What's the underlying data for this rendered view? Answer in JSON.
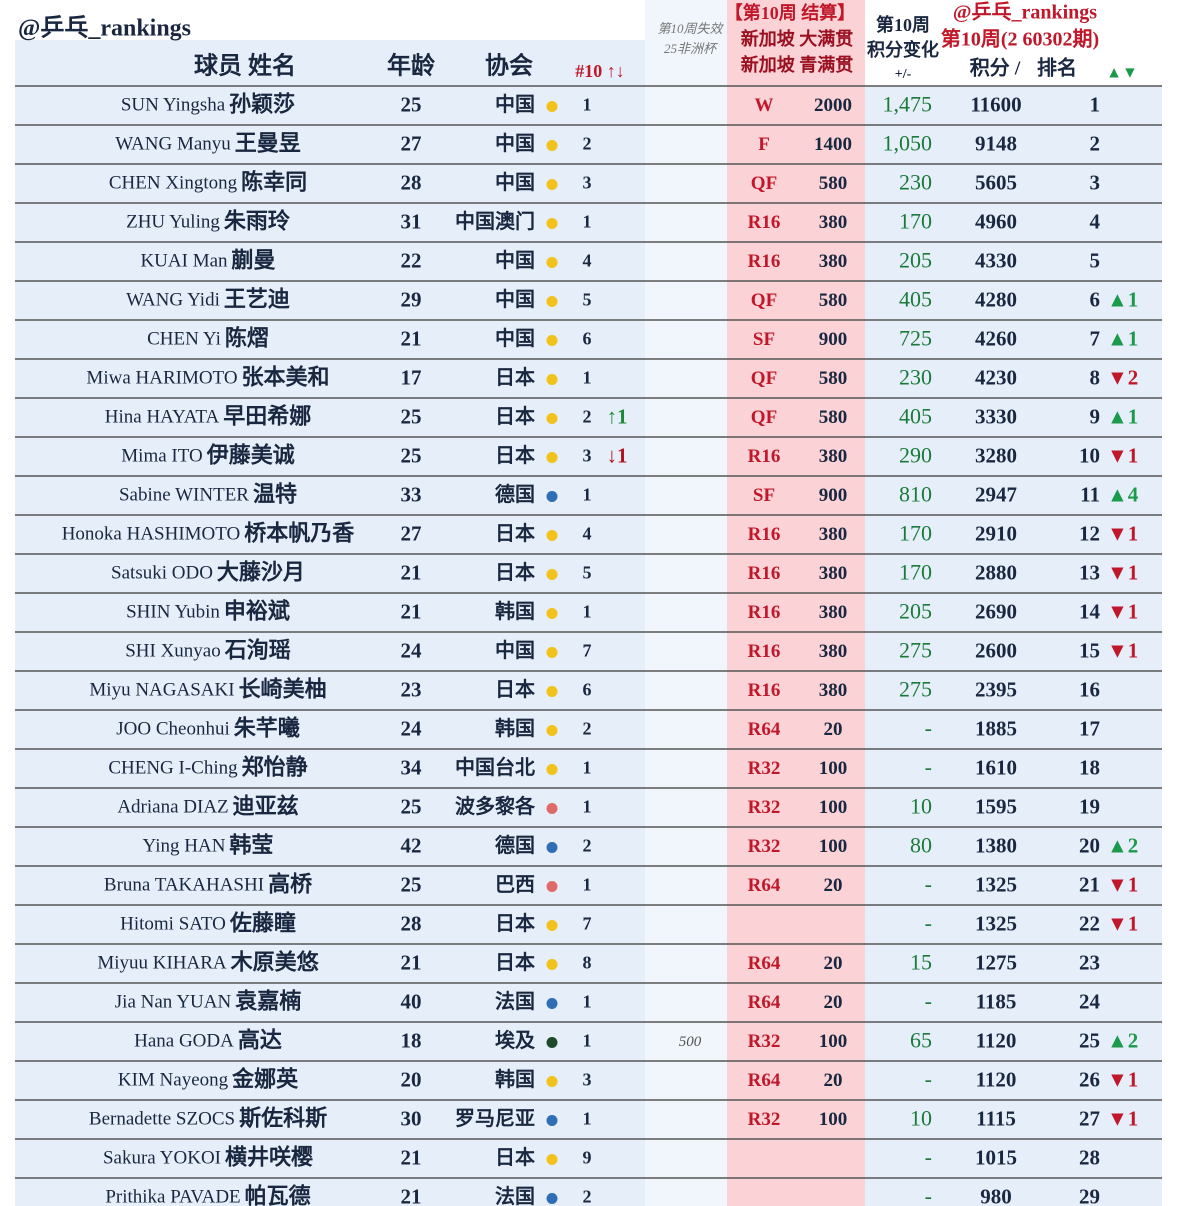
{
  "header": {
    "handle": "@乒乓_rankings",
    "col_name": "球员 姓名",
    "col_age": "年龄",
    "col_assoc": "协会",
    "col_rank10": "#10 ↑↓",
    "col_expired": [
      "第10周失效",
      "25非洲杯"
    ],
    "col_event": [
      "【第10周 结算】",
      "新加坡 大满贯",
      "新加坡 青满贯"
    ],
    "col_change": [
      "第10周",
      "积分变化",
      "+/-"
    ],
    "handle2": "@乒乓_rankings",
    "col_week": "第10周(2 60302期)",
    "col_points": "积分 /",
    "col_rank": "排名",
    "col_move": "▲▼"
  },
  "rows": [
    {
      "name_en": "SUN Yingsha",
      "name_cn": "孙颖莎",
      "age": 25,
      "assoc": "中国",
      "dot": "#f2c21b",
      "rank10": 1,
      "round": "W",
      "round_pts": 2000,
      "change": "1,475",
      "points": 11600,
      "rank": 1
    },
    {
      "name_en": "WANG Manyu",
      "name_cn": "王曼昱",
      "age": 27,
      "assoc": "中国",
      "dot": "#f2c21b",
      "rank10": 2,
      "round": "F",
      "round_pts": 1400,
      "change": "1,050",
      "points": 9148,
      "rank": 2
    },
    {
      "name_en": "CHEN Xingtong",
      "name_cn": "陈幸同",
      "age": 28,
      "assoc": "中国",
      "dot": "#f2c21b",
      "rank10": 3,
      "round": "QF",
      "round_pts": 580,
      "change": 230,
      "points": 5605,
      "rank": 3
    },
    {
      "name_en": "ZHU Yuling",
      "name_cn": "朱雨玲",
      "age": 31,
      "assoc": "中国澳门",
      "dot": "#f2c21b",
      "rank10": 1,
      "round": "R16",
      "round_pts": 380,
      "change": 170,
      "points": 4960,
      "rank": 4
    },
    {
      "name_en": "KUAI Man",
      "name_cn": "蒯曼",
      "age": 22,
      "assoc": "中国",
      "dot": "#f2c21b",
      "rank10": 4,
      "round": "R16",
      "round_pts": 380,
      "change": 205,
      "points": 4330,
      "rank": 5
    },
    {
      "name_en": "WANG Yidi",
      "name_cn": "王艺迪",
      "age": 29,
      "assoc": "中国",
      "dot": "#f2c21b",
      "rank10": 5,
      "round": "QF",
      "round_pts": 580,
      "change": 405,
      "points": 4280,
      "rank": 6,
      "move": "▲1"
    },
    {
      "name_en": "CHEN Yi",
      "name_cn": "陈熠",
      "age": 21,
      "assoc": "中国",
      "dot": "#f2c21b",
      "rank10": 6,
      "round": "SF",
      "round_pts": 900,
      "change": 725,
      "points": 4260,
      "rank": 7,
      "move": "▲1"
    },
    {
      "name_en": "Miwa HARIMOTO",
      "name_cn": "张本美和",
      "age": 17,
      "assoc": "日本",
      "dot": "#f2c21b",
      "rank10": 1,
      "round": "QF",
      "round_pts": 580,
      "change": 230,
      "points": 4230,
      "rank": 8,
      "move": "▼2"
    },
    {
      "name_en": "Hina HAYATA",
      "name_cn": "早田希娜",
      "age": 25,
      "assoc": "日本",
      "dot": "#f2c21b",
      "rank10": 2,
      "trend": "↑1",
      "round": "QF",
      "round_pts": 580,
      "change": 405,
      "points": 3330,
      "rank": 9,
      "move": "▲1"
    },
    {
      "name_en": "Mima ITO",
      "name_cn": "伊藤美诚",
      "age": 25,
      "assoc": "日本",
      "dot": "#f2c21b",
      "rank10": 3,
      "trend": "↓1",
      "round": "R16",
      "round_pts": 380,
      "change": 290,
      "points": 3280,
      "rank": 10,
      "move": "▼1"
    },
    {
      "name_en": "Sabine WINTER",
      "name_cn": "温特",
      "age": 33,
      "assoc": "德国",
      "dot": "#2f6db5",
      "rank10": 1,
      "round": "SF",
      "round_pts": 900,
      "change": 810,
      "points": 2947,
      "rank": 11,
      "move": "▲4"
    },
    {
      "name_en": "Honoka HASHIMOTO",
      "name_cn": "桥本帆乃香",
      "age": 27,
      "assoc": "日本",
      "dot": "#f2c21b",
      "rank10": 4,
      "round": "R16",
      "round_pts": 380,
      "change": 170,
      "points": 2910,
      "rank": 12,
      "move": "▼1"
    },
    {
      "name_en": "Satsuki ODO",
      "name_cn": "大藤沙月",
      "age": 21,
      "assoc": "日本",
      "dot": "#f2c21b",
      "rank10": 5,
      "round": "R16",
      "round_pts": 380,
      "change": 170,
      "points": 2880,
      "rank": 13,
      "move": "▼1"
    },
    {
      "name_en": "SHIN Yubin",
      "name_cn": "申裕斌",
      "age": 21,
      "assoc": "韩国",
      "dot": "#f2c21b",
      "rank10": 1,
      "round": "R16",
      "round_pts": 380,
      "change": 205,
      "points": 2690,
      "rank": 14,
      "move": "▼1"
    },
    {
      "name_en": "SHI Xunyao",
      "name_cn": "石洵瑶",
      "age": 24,
      "assoc": "中国",
      "dot": "#f2c21b",
      "rank10": 7,
      "round": "R16",
      "round_pts": 380,
      "change": 275,
      "points": 2600,
      "rank": 15,
      "move": "▼1"
    },
    {
      "name_en": "Miyu NAGASAKI",
      "name_cn": "长崎美柚",
      "age": 23,
      "assoc": "日本",
      "dot": "#f2c21b",
      "rank10": 6,
      "round": "R16",
      "round_pts": 380,
      "change": 275,
      "points": 2395,
      "rank": 16
    },
    {
      "name_en": "JOO Cheonhui",
      "name_cn": "朱芊曦",
      "age": 24,
      "assoc": "韩国",
      "dot": "#f2c21b",
      "rank10": 2,
      "round": "R64",
      "round_pts": 20,
      "change": "-",
      "points": 1885,
      "rank": 17
    },
    {
      "name_en": "CHENG I-Ching",
      "name_cn": "郑怡静",
      "age": 34,
      "assoc": "中国台北",
      "dot": "#f2c21b",
      "rank10": 1,
      "round": "R32",
      "round_pts": 100,
      "change": "-",
      "points": 1610,
      "rank": 18
    },
    {
      "name_en": "Adriana DIAZ",
      "name_cn": "迪亚兹",
      "age": 25,
      "assoc": "波多黎各",
      "dot": "#e06a6a",
      "rank10": 1,
      "round": "R32",
      "round_pts": 100,
      "change": 10,
      "points": 1595,
      "rank": 19
    },
    {
      "name_en": "Ying HAN",
      "name_cn": "韩莹",
      "age": 42,
      "assoc": "德国",
      "dot": "#2f6db5",
      "rank10": 2,
      "round": "R32",
      "round_pts": 100,
      "change": 80,
      "points": 1380,
      "rank": 20,
      "move": "▲2"
    },
    {
      "name_en": "Bruna TAKAHASHI",
      "name_cn": "高桥",
      "age": 25,
      "assoc": "巴西",
      "dot": "#e06a6a",
      "rank10": 1,
      "round": "R64",
      "round_pts": 20,
      "change": "-",
      "points": 1325,
      "rank": 21,
      "move": "▼1"
    },
    {
      "name_en": "Hitomi SATO",
      "name_cn": "佐藤瞳",
      "age": 28,
      "assoc": "日本",
      "dot": "#f2c21b",
      "rank10": 7,
      "change": "-",
      "points": 1325,
      "rank": 22,
      "move": "▼1"
    },
    {
      "name_en": "Miyuu KIHARA",
      "name_cn": "木原美悠",
      "age": 21,
      "assoc": "日本",
      "dot": "#f2c21b",
      "rank10": 8,
      "round": "R64",
      "round_pts": 20,
      "change": 15,
      "points": 1275,
      "rank": 23
    },
    {
      "name_en": "Jia Nan YUAN",
      "name_cn": "袁嘉楠",
      "age": 40,
      "assoc": "法国",
      "dot": "#2f6db5",
      "rank10": 1,
      "round": "R64",
      "round_pts": 20,
      "change": "-",
      "points": 1185,
      "rank": 24
    },
    {
      "name_en": "Hana GODA",
      "name_cn": "高达",
      "age": 18,
      "assoc": "埃及",
      "dot": "#1f4a2a",
      "rank10": 1,
      "expired": 500,
      "round": "R32",
      "round_pts": 100,
      "change": 65,
      "points": 1120,
      "rank": 25,
      "move": "▲2"
    },
    {
      "name_en": "KIM Nayeong",
      "name_cn": "金娜英",
      "age": 20,
      "assoc": "韩国",
      "dot": "#f2c21b",
      "rank10": 3,
      "round": "R64",
      "round_pts": 20,
      "change": "-",
      "points": 1120,
      "rank": 26,
      "move": "▼1"
    },
    {
      "name_en": "Bernadette SZOCS",
      "name_cn": "斯佐科斯",
      "age": 30,
      "assoc": "罗马尼亚",
      "dot": "#2f6db5",
      "rank10": 1,
      "round": "R32",
      "round_pts": 100,
      "change": 10,
      "points": 1115,
      "rank": 27,
      "move": "▼1"
    },
    {
      "name_en": "Sakura YOKOI",
      "name_cn": "横井咲樱",
      "age": 21,
      "assoc": "日本",
      "dot": "#f2c21b",
      "rank10": 9,
      "change": "-",
      "points": 1015,
      "rank": 28
    },
    {
      "name_en": "Prithika PAVADE",
      "name_cn": "帕瓦德",
      "age": 21,
      "assoc": "法国",
      "dot": "#2f6db5",
      "rank10": 2,
      "change": "-",
      "points": 980,
      "rank": 29
    }
  ]
}
